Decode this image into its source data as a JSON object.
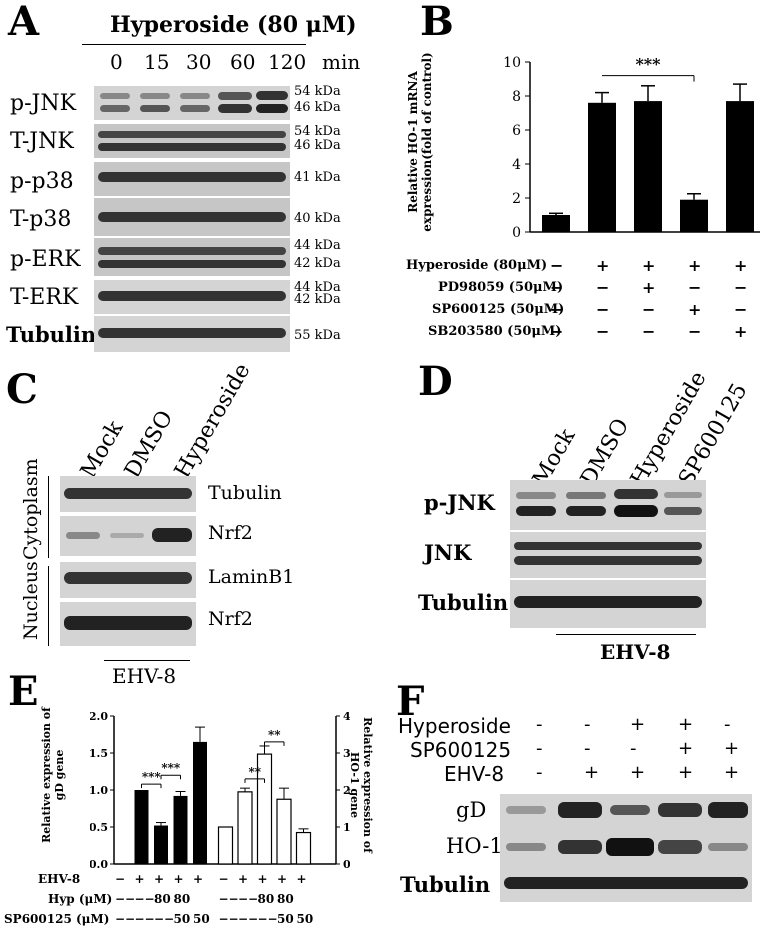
{
  "panels": {
    "A": "A",
    "B": "B",
    "C": "C",
    "D": "D",
    "E": "E",
    "F": "F"
  },
  "A": {
    "header": "Hyperoside (80 μM)",
    "times": [
      "0",
      "15",
      "30",
      "60",
      "120"
    ],
    "time_unit": "min",
    "rows": [
      {
        "label": "p-JNK",
        "kda": [
          "54 kDa",
          "46 kDa"
        ]
      },
      {
        "label": "T-JNK",
        "kda": [
          "54 kDa",
          "46 kDa"
        ]
      },
      {
        "label": "p-p38",
        "kda": [
          "41 kDa"
        ]
      },
      {
        "label": "T-p38",
        "kda": [
          "40 kDa"
        ]
      },
      {
        "label": "p-ERK",
        "kda": [
          "44 kDa",
          "42 kDa"
        ]
      },
      {
        "label": "T-ERK",
        "kda": [
          "44 kDa",
          "42 kDa"
        ]
      },
      {
        "label": "Tubulin",
        "kda": [
          "55 kDa"
        ]
      }
    ]
  },
  "B": {
    "chart_data": {
      "type": "bar",
      "ylabel": "Relative HO-1 mRNA expression(fold of control)",
      "ylim": [
        0,
        10
      ],
      "yticks": [
        "0",
        "2",
        "4",
        "6",
        "8",
        "10"
      ],
      "values": [
        1.0,
        7.6,
        7.7,
        1.9,
        7.7
      ],
      "errors": [
        0.1,
        0.6,
        0.9,
        0.35,
        1.0
      ],
      "significance": "***",
      "treatment_rows": [
        {
          "label": "Hyperoside (80μM)",
          "marks": [
            "−",
            "+",
            "+",
            "+",
            "+"
          ]
        },
        {
          "label": "PD98059 (50μM)",
          "marks": [
            "−",
            "−",
            "+",
            "−",
            "−"
          ]
        },
        {
          "label": "SP600125 (50μM)",
          "marks": [
            "−",
            "−",
            "−",
            "+",
            "−"
          ]
        },
        {
          "label": "SB203580 (50μM)",
          "marks": [
            "−",
            "−",
            "−",
            "−",
            "+"
          ]
        }
      ]
    }
  },
  "C": {
    "lanes": [
      "Mock",
      "DMSO",
      "Hyperoside"
    ],
    "sections": [
      "Cytoplasm",
      "Nucleus"
    ],
    "bands": [
      "Tubulin",
      "Nrf2",
      "LaminB1",
      "Nrf2"
    ],
    "footer": "EHV-8"
  },
  "D": {
    "lanes": [
      "Mock",
      "DMSO",
      "Hyperoside",
      "SP600125"
    ],
    "bands": [
      "p-JNK",
      "JNK",
      "Tubulin"
    ],
    "footer": "EHV-8"
  },
  "E": {
    "chart_data": {
      "type": "bar",
      "ylabel_left": "Relative expression of gD gene",
      "ylabel_right": "Relative expression of HO-1 gene",
      "ylim_left": [
        0,
        2.0
      ],
      "ylim_right": [
        0,
        4
      ],
      "yticks_left": [
        "0.0",
        "0.5",
        "1.0",
        "1.5",
        "2.0"
      ],
      "yticks_right": [
        "0",
        "1",
        "2",
        "3",
        "4"
      ],
      "series": [
        {
          "name": "gD",
          "values": [
            1.0,
            0.52,
            0.92,
            1.65
          ],
          "errors": [
            0,
            0.04,
            0.06,
            0.2
          ]
        },
        {
          "name": "HO-1",
          "values": [
            1.0,
            1.95,
            2.97,
            1.75,
            0.85
          ],
          "errors": [
            0,
            0.1,
            0.22,
            0.3,
            0.1
          ]
        }
      ],
      "significance_left": [
        "***",
        "***"
      ],
      "significance_right": [
        "**",
        "**"
      ],
      "treatment_rows": [
        {
          "label": "EHV-8",
          "marks": [
            "−",
            "+",
            "+",
            "+",
            "+",
            "−",
            "+",
            "+",
            "+",
            "+"
          ]
        },
        {
          "label": "Hyp (μM)",
          "marks": [
            "−−",
            "−−",
            "80",
            "80",
            "",
            "−−",
            "−−",
            "80",
            "80",
            ""
          ]
        },
        {
          "label": "SP600125 (μM)",
          "marks": [
            "−−",
            "−−",
            "−−",
            "50",
            "50",
            "−−",
            "−−",
            "−−",
            "50",
            "50"
          ]
        }
      ]
    }
  },
  "F": {
    "treatment_rows": [
      {
        "label": "Hyperoside",
        "marks": [
          "-",
          "-",
          "+",
          "+",
          "-"
        ]
      },
      {
        "label": "SP600125",
        "marks": [
          "-",
          "-",
          "-",
          "+",
          "+"
        ]
      },
      {
        "label": "EHV-8",
        "marks": [
          "-",
          "+",
          "+",
          "+",
          "+"
        ]
      }
    ],
    "bands": [
      "gD",
      "HO-1",
      "Tubulin"
    ]
  }
}
